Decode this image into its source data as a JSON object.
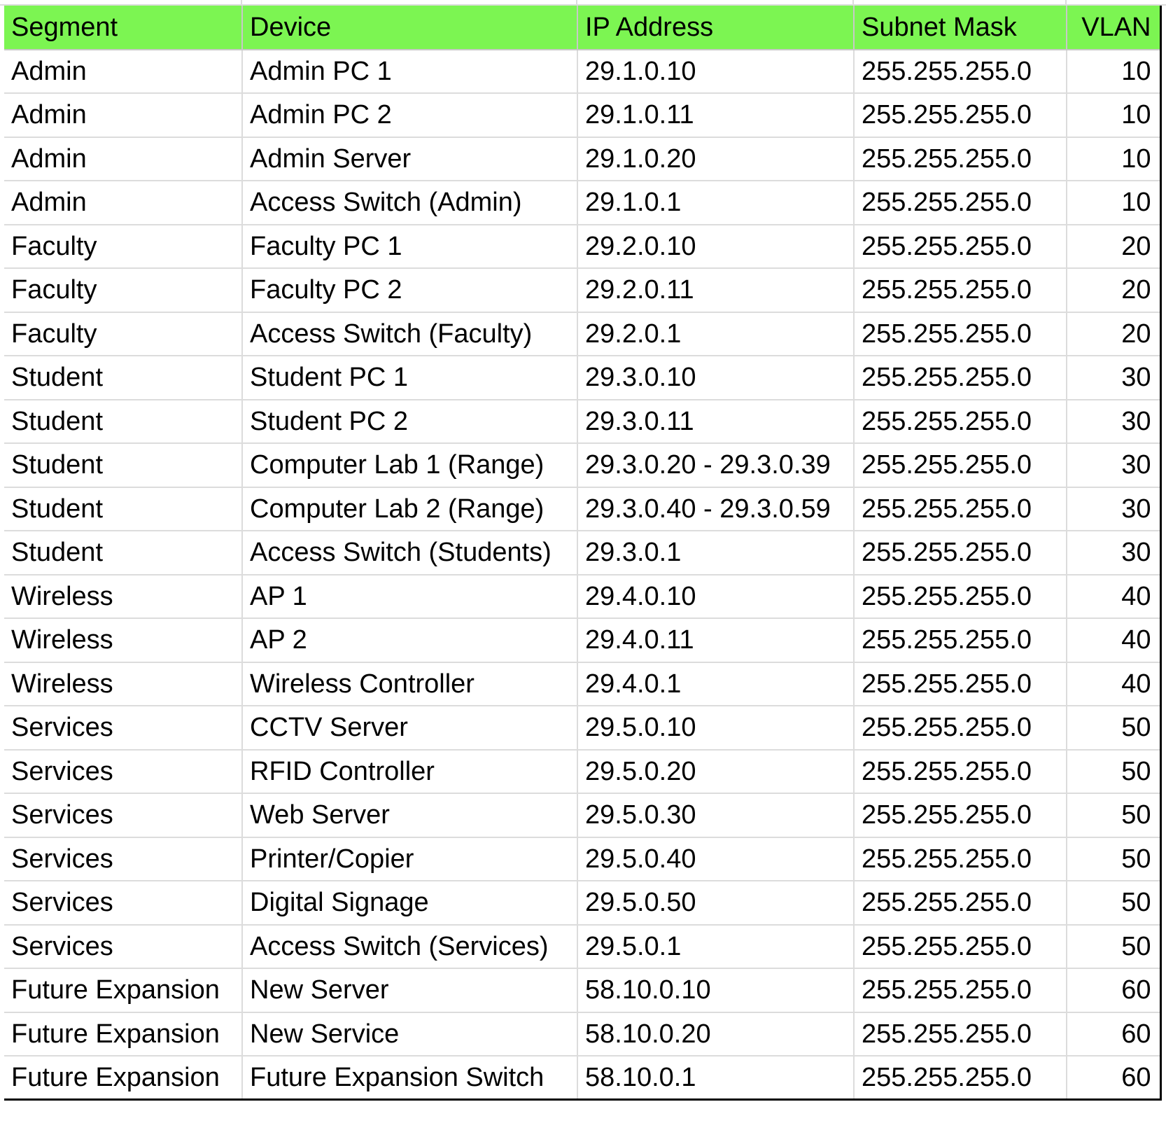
{
  "sheet": {
    "headers": {
      "segment": "Segment",
      "device": "Device",
      "ip": "IP Address",
      "mask": "Subnet Mask",
      "vlan": "VLAN"
    },
    "header_color": "#7cf552",
    "rows": [
      {
        "segment": "Admin",
        "device": "Admin PC 1",
        "ip": "29.1.0.10",
        "mask": "255.255.255.0",
        "vlan": "10"
      },
      {
        "segment": "Admin",
        "device": "Admin PC 2",
        "ip": "29.1.0.11",
        "mask": "255.255.255.0",
        "vlan": "10"
      },
      {
        "segment": "Admin",
        "device": "Admin Server",
        "ip": "29.1.0.20",
        "mask": "255.255.255.0",
        "vlan": "10"
      },
      {
        "segment": "Admin",
        "device": "Access Switch (Admin)",
        "ip": "29.1.0.1",
        "mask": "255.255.255.0",
        "vlan": "10"
      },
      {
        "segment": "Faculty",
        "device": "Faculty PC 1",
        "ip": "29.2.0.10",
        "mask": "255.255.255.0",
        "vlan": "20"
      },
      {
        "segment": "Faculty",
        "device": "Faculty PC 2",
        "ip": "29.2.0.11",
        "mask": "255.255.255.0",
        "vlan": "20"
      },
      {
        "segment": "Faculty",
        "device": "Access Switch (Faculty)",
        "ip": "29.2.0.1",
        "mask": "255.255.255.0",
        "vlan": "20"
      },
      {
        "segment": "Student",
        "device": "Student PC 1",
        "ip": "29.3.0.10",
        "mask": "255.255.255.0",
        "vlan": "30"
      },
      {
        "segment": "Student",
        "device": "Student PC 2",
        "ip": "29.3.0.11",
        "mask": "255.255.255.0",
        "vlan": "30"
      },
      {
        "segment": "Student",
        "device": "Computer Lab 1 (Range)",
        "ip": "29.3.0.20 - 29.3.0.39",
        "mask": "255.255.255.0",
        "vlan": "30"
      },
      {
        "segment": "Student",
        "device": "Computer Lab 2 (Range)",
        "ip": "29.3.0.40 - 29.3.0.59",
        "mask": "255.255.255.0",
        "vlan": "30"
      },
      {
        "segment": "Student",
        "device": "Access Switch (Students)",
        "ip": "29.3.0.1",
        "mask": "255.255.255.0",
        "vlan": "30"
      },
      {
        "segment": "Wireless",
        "device": "AP 1",
        "ip": "29.4.0.10",
        "mask": "255.255.255.0",
        "vlan": "40"
      },
      {
        "segment": "Wireless",
        "device": "AP 2",
        "ip": "29.4.0.11",
        "mask": "255.255.255.0",
        "vlan": "40"
      },
      {
        "segment": "Wireless",
        "device": "Wireless Controller",
        "ip": "29.4.0.1",
        "mask": "255.255.255.0",
        "vlan": "40"
      },
      {
        "segment": "Services",
        "device": "CCTV Server",
        "ip": "29.5.0.10",
        "mask": "255.255.255.0",
        "vlan": "50"
      },
      {
        "segment": "Services",
        "device": "RFID Controller",
        "ip": "29.5.0.20",
        "mask": "255.255.255.0",
        "vlan": "50"
      },
      {
        "segment": "Services",
        "device": "Web Server",
        "ip": "29.5.0.30",
        "mask": "255.255.255.0",
        "vlan": "50"
      },
      {
        "segment": "Services",
        "device": "Printer/Copier",
        "ip": "29.5.0.40",
        "mask": "255.255.255.0",
        "vlan": "50"
      },
      {
        "segment": "Services",
        "device": "Digital Signage",
        "ip": "29.5.0.50",
        "mask": "255.255.255.0",
        "vlan": "50"
      },
      {
        "segment": "Services",
        "device": "Access Switch (Services)",
        "ip": "29.5.0.1",
        "mask": "255.255.255.0",
        "vlan": "50"
      },
      {
        "segment": "Future Expansion",
        "device": "New Server",
        "ip": "58.10.0.10",
        "mask": "255.255.255.0",
        "vlan": "60"
      },
      {
        "segment": "Future Expansion",
        "device": "New Service",
        "ip": "58.10.0.20",
        "mask": "255.255.255.0",
        "vlan": "60"
      },
      {
        "segment": "Future Expansion",
        "device": "Future Expansion Switch",
        "ip": "58.10.0.1",
        "mask": "255.255.255.0",
        "vlan": "60"
      }
    ]
  }
}
